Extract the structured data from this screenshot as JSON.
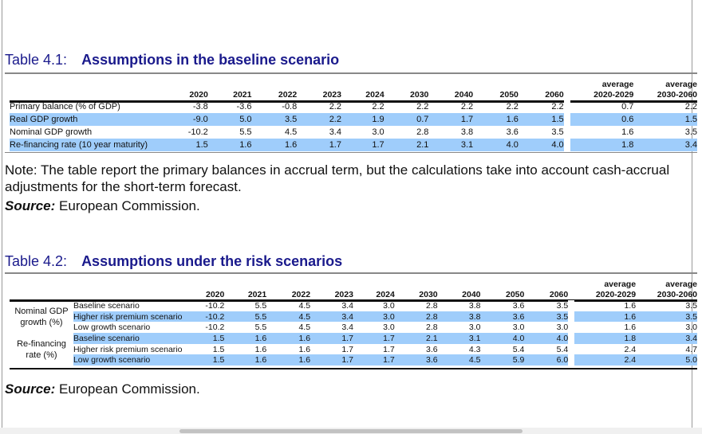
{
  "table1": {
    "number": "Table 4.1:",
    "title": "Assumptions in the baseline scenario",
    "columns": [
      "2020",
      "2021",
      "2022",
      "2023",
      "2024",
      "2030",
      "2040",
      "2050",
      "2060"
    ],
    "avg_columns": [
      [
        "average",
        "2020-2029"
      ],
      [
        "average",
        "2030-2060"
      ]
    ],
    "rows": [
      {
        "label": "Primary balance (% of GDP)",
        "values": [
          "-3.8",
          "-3.6",
          "-0.8",
          "2.2",
          "2.2",
          "2.2",
          "2.2",
          "2.2",
          "2.2"
        ],
        "avg": [
          "0.7",
          "2.2"
        ],
        "highlight": false
      },
      {
        "label": "Real GDP growth",
        "values": [
          "-9.0",
          "5.0",
          "3.5",
          "2.2",
          "1.9",
          "0.7",
          "1.7",
          "1.6",
          "1.5"
        ],
        "avg": [
          "0.6",
          "1.5"
        ],
        "highlight": true
      },
      {
        "label": "Nominal GDP growth",
        "values": [
          "-10.2",
          "5.5",
          "4.5",
          "3.4",
          "3.0",
          "2.8",
          "3.8",
          "3.6",
          "3.5"
        ],
        "avg": [
          "1.6",
          "3.5"
        ],
        "highlight": false
      },
      {
        "label": "Re-financing rate (10 year maturity)",
        "values": [
          "1.5",
          "1.6",
          "1.6",
          "1.7",
          "1.7",
          "2.1",
          "3.1",
          "4.0",
          "4.0"
        ],
        "avg": [
          "1.8",
          "3.4"
        ],
        "highlight": true
      }
    ]
  },
  "note": {
    "text": "Note: The table report the primary balances in accrual term, but the calculations take into account cash-accrual adjustments for the short-term forecast.",
    "source_label": "Source:",
    "source_value": " European Commission."
  },
  "table2": {
    "number": "Table 4.2:",
    "title": "Assumptions under the risk scenarios",
    "columns": [
      "2020",
      "2021",
      "2022",
      "2023",
      "2024",
      "2030",
      "2040",
      "2050",
      "2060"
    ],
    "avg_columns": [
      [
        "average",
        "2020-2029"
      ],
      [
        "average",
        "2030-2060"
      ]
    ],
    "groups": [
      {
        "label": [
          "Nominal GDP",
          "growth (%)"
        ],
        "rows": [
          {
            "label": "Baseline scenario",
            "values": [
              "-10.2",
              "5.5",
              "4.5",
              "3.4",
              "3.0",
              "2.8",
              "3.8",
              "3.6",
              "3.5"
            ],
            "avg": [
              "1.6",
              "3.5"
            ],
            "highlight": false
          },
          {
            "label": "Higher risk premium scenario",
            "values": [
              "-10.2",
              "5.5",
              "4.5",
              "3.4",
              "3.0",
              "2.8",
              "3.8",
              "3.6",
              "3.5"
            ],
            "avg": [
              "1.6",
              "3.5"
            ],
            "highlight": true
          },
          {
            "label": "Low growth scenario",
            "values": [
              "-10.2",
              "5.5",
              "4.5",
              "3.4",
              "3.0",
              "2.8",
              "3.0",
              "3.0",
              "3.0"
            ],
            "avg": [
              "1.6",
              "3.0"
            ],
            "highlight": false
          }
        ]
      },
      {
        "label": [
          "Re-financing",
          "rate (%)"
        ],
        "rows": [
          {
            "label": "Baseline scenario",
            "values": [
              "1.5",
              "1.6",
              "1.6",
              "1.7",
              "1.7",
              "2.1",
              "3.1",
              "4.0",
              "4.0"
            ],
            "avg": [
              "1.8",
              "3.4"
            ],
            "highlight": true
          },
          {
            "label": "Higher risk premium scenario",
            "values": [
              "1.5",
              "1.6",
              "1.6",
              "1.7",
              "1.7",
              "3.6",
              "4.3",
              "5.4",
              "5.4"
            ],
            "avg": [
              "2.4",
              "4.7"
            ],
            "highlight": false
          },
          {
            "label": "Low growth scenario",
            "values": [
              "1.5",
              "1.6",
              "1.6",
              "1.7",
              "1.7",
              "3.6",
              "4.5",
              "5.9",
              "6.0"
            ],
            "avg": [
              "2.4",
              "5.0"
            ],
            "highlight": true
          }
        ]
      }
    ],
    "source_label": "Source:",
    "source_value": " European Commission."
  },
  "colors": {
    "title": "#1a1a8c",
    "highlight": "#9fcdfb"
  }
}
